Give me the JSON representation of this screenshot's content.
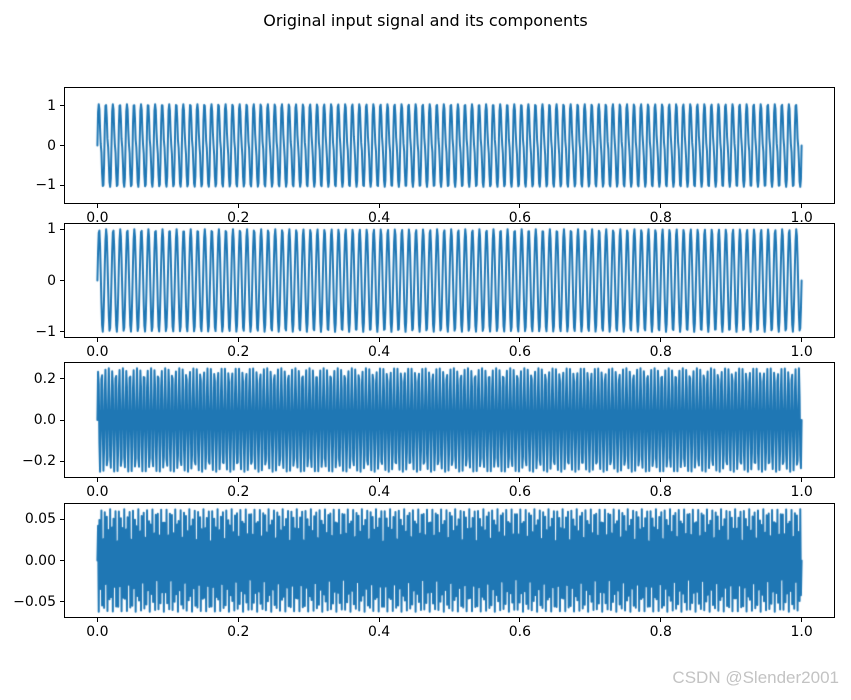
{
  "title": "Original input signal and its components",
  "watermark": "CSDN @Slender2001",
  "colors": {
    "line": "#1f77b4",
    "spine": "#000000",
    "tick": "#000000",
    "title_text": "#000000",
    "watermark": "#c3c3c3",
    "background": "#ffffff"
  },
  "chart_data": [
    {
      "type": "line",
      "name": "original-composite-signal",
      "description": "sum of the three sinusoid components below, t from 0 to 1",
      "signal": {
        "kind": "sum-of-sinusoids",
        "components": [
          {
            "amplitude": 1.0,
            "frequency_hz": 100
          },
          {
            "amplitude": 0.25,
            "frequency_hz": 200
          },
          {
            "amplitude": 0.0625,
            "frequency_hz": 400
          }
        ],
        "t_start": 0,
        "t_end": 1,
        "num_samples": 1050
      },
      "xlim": [
        -0.046,
        1.046
      ],
      "ylim": [
        -1.444,
        1.444
      ],
      "xtick_values": [
        0.0,
        0.2,
        0.4,
        0.6,
        0.8,
        1.0
      ],
      "xtick_labels": [
        "0.0",
        "0.2",
        "0.4",
        "0.6",
        "0.8",
        "1.0"
      ],
      "ytick_values": [
        1,
        0,
        -1
      ],
      "ytick_labels": [
        "1",
        "0",
        "−1"
      ],
      "grid": false,
      "legend": null
    },
    {
      "type": "line",
      "name": "component-1-signal",
      "description": "first component sinusoid",
      "signal": {
        "kind": "sum-of-sinusoids",
        "components": [
          {
            "amplitude": 1.0,
            "frequency_hz": 100
          }
        ],
        "t_start": 0,
        "t_end": 1,
        "num_samples": 1050
      },
      "xlim": [
        -0.046,
        1.046
      ],
      "ylim": [
        -1.1,
        1.1
      ],
      "xtick_values": [
        0.0,
        0.2,
        0.4,
        0.6,
        0.8,
        1.0
      ],
      "xtick_labels": [
        "0.0",
        "0.2",
        "0.4",
        "0.6",
        "0.8",
        "1.0"
      ],
      "ytick_values": [
        1,
        0,
        -1
      ],
      "ytick_labels": [
        "1",
        "0",
        "−1"
      ],
      "grid": false,
      "legend": null
    },
    {
      "type": "line",
      "name": "component-2-signal",
      "description": "second component sinusoid",
      "signal": {
        "kind": "sum-of-sinusoids",
        "components": [
          {
            "amplitude": 0.25,
            "frequency_hz": 200
          }
        ],
        "t_start": 0,
        "t_end": 1,
        "num_samples": 1050
      },
      "xlim": [
        -0.046,
        1.046
      ],
      "ylim": [
        -0.275,
        0.275
      ],
      "xtick_values": [
        0.0,
        0.2,
        0.4,
        0.6,
        0.8,
        1.0
      ],
      "xtick_labels": [
        "0.0",
        "0.2",
        "0.4",
        "0.6",
        "0.8",
        "1.0"
      ],
      "ytick_values": [
        0.2,
        0.0,
        -0.2
      ],
      "ytick_labels": [
        "0.2",
        "0.0",
        "−0.2"
      ],
      "grid": false,
      "legend": null
    },
    {
      "type": "line",
      "name": "component-3-signal",
      "description": "third component sinusoid",
      "signal": {
        "kind": "sum-of-sinusoids",
        "components": [
          {
            "amplitude": 0.0625,
            "frequency_hz": 400
          }
        ],
        "t_start": 0,
        "t_end": 1,
        "num_samples": 1050
      },
      "xlim": [
        -0.046,
        1.046
      ],
      "ylim": [
        -0.06875,
        0.06875
      ],
      "xtick_values": [
        0.0,
        0.2,
        0.4,
        0.6,
        0.8,
        1.0
      ],
      "xtick_labels": [
        "0.0",
        "0.2",
        "0.4",
        "0.6",
        "0.8",
        "1.0"
      ],
      "ytick_values": [
        0.05,
        0.0,
        -0.05
      ],
      "ytick_labels": [
        "0.05",
        "0.00",
        "−0.05"
      ],
      "grid": false,
      "legend": null
    }
  ]
}
